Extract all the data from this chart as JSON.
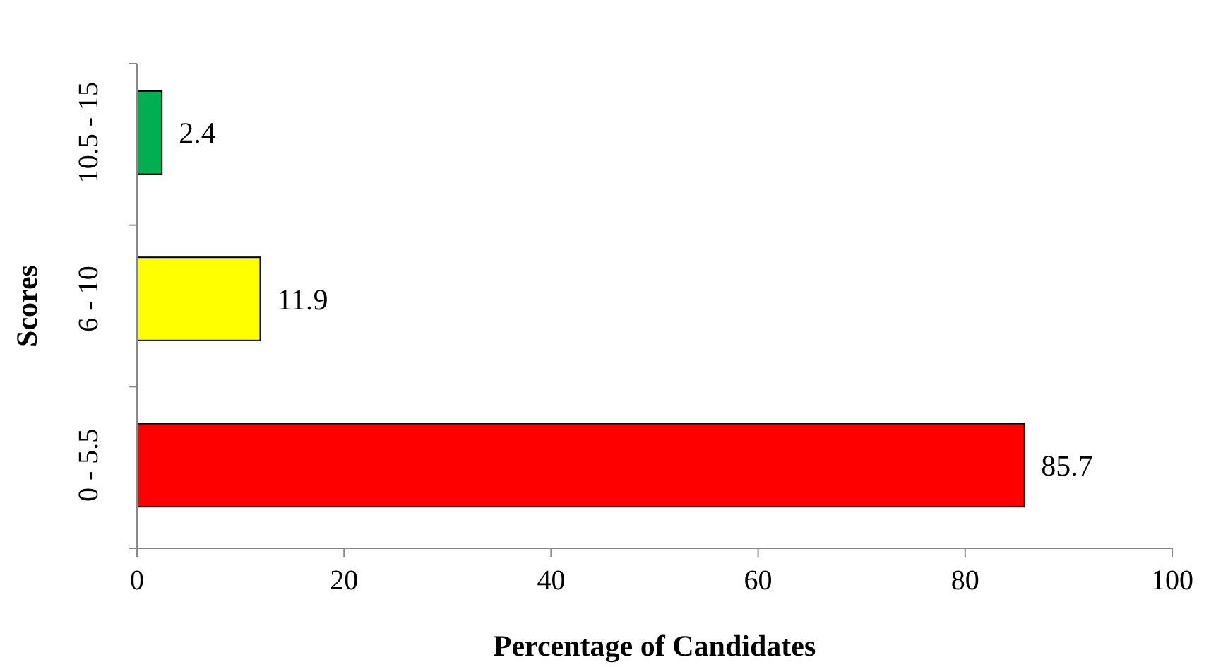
{
  "chart_data": {
    "type": "bar",
    "orientation": "horizontal",
    "categories": [
      "10.5 - 15",
      "6 - 10",
      "0 - 5.5"
    ],
    "values": [
      2.4,
      11.9,
      85.7
    ],
    "colors": [
      "#00b050",
      "#ffff00",
      "#ff0000"
    ],
    "xlabel": "Percentage of Candidates",
    "ylabel": "Scores",
    "xlim": [
      0,
      100
    ],
    "xticks": [
      0,
      20,
      40,
      60,
      80,
      100
    ],
    "data_labels": true
  }
}
